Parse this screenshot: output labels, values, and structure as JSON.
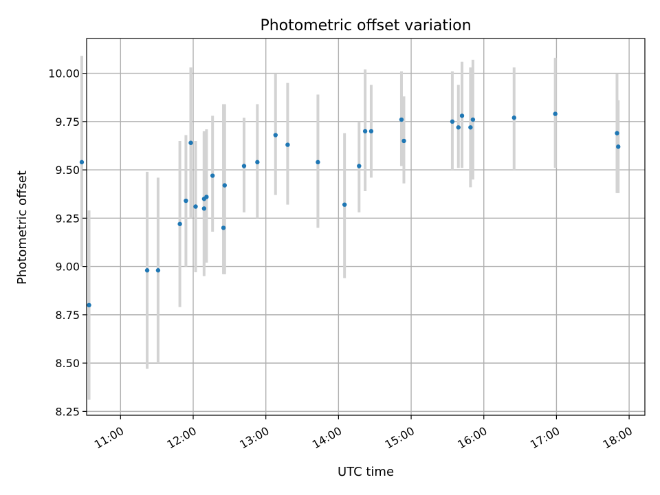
{
  "chart_data": {
    "type": "scatter",
    "title": "Photometric offset variation",
    "xlabel": "UTC time",
    "ylabel": "Photometric offset",
    "x_axis": "time",
    "xlim": [
      "10:32",
      "18:13"
    ],
    "ylim": [
      8.23,
      10.18
    ],
    "xticks": [
      "11:00",
      "12:00",
      "13:00",
      "14:00",
      "15:00",
      "16:00",
      "17:00",
      "18:00"
    ],
    "yticks": [
      "8.25",
      "8.50",
      "8.75",
      "9.00",
      "9.25",
      "9.50",
      "9.75",
      "10.00"
    ],
    "grid": true,
    "marker_color": "#1f77b4",
    "errorbar_color": "#d3d3d3",
    "points": [
      {
        "t": "10:28",
        "y": 9.54,
        "lo": 9.0,
        "hi": 10.09
      },
      {
        "t": "10:34",
        "y": 8.8,
        "lo": 8.31,
        "hi": 9.29
      },
      {
        "t": "11:22",
        "y": 8.98,
        "lo": 8.47,
        "hi": 9.49
      },
      {
        "t": "11:31",
        "y": 8.98,
        "lo": 8.5,
        "hi": 9.46
      },
      {
        "t": "11:49",
        "y": 9.22,
        "lo": 8.79,
        "hi": 9.65
      },
      {
        "t": "11:54",
        "y": 9.34,
        "lo": 9.0,
        "hi": 9.68
      },
      {
        "t": "11:58",
        "y": 9.64,
        "lo": 9.25,
        "hi": 10.03
      },
      {
        "t": "12:02",
        "y": 9.31,
        "lo": 8.97,
        "hi": 9.65
      },
      {
        "t": "12:09",
        "y": 9.3,
        "lo": 8.95,
        "hi": 9.69
      },
      {
        "t": "12:09",
        "y": 9.35,
        "lo": 9.0,
        "hi": 9.7
      },
      {
        "t": "12:11",
        "y": 9.36,
        "lo": 9.02,
        "hi": 9.71
      },
      {
        "t": "12:16",
        "y": 9.47,
        "lo": 9.18,
        "hi": 9.78
      },
      {
        "t": "12:25",
        "y": 9.2,
        "lo": 8.96,
        "hi": 9.84
      },
      {
        "t": "12:26",
        "y": 9.42,
        "lo": 8.96,
        "hi": 9.84
      },
      {
        "t": "12:42",
        "y": 9.52,
        "lo": 9.28,
        "hi": 9.77
      },
      {
        "t": "12:53",
        "y": 9.54,
        "lo": 9.25,
        "hi": 9.84
      },
      {
        "t": "13:08",
        "y": 9.68,
        "lo": 9.37,
        "hi": 10.0
      },
      {
        "t": "13:18",
        "y": 9.63,
        "lo": 9.32,
        "hi": 9.95
      },
      {
        "t": "13:43",
        "y": 9.54,
        "lo": 9.2,
        "hi": 9.89
      },
      {
        "t": "14:05",
        "y": 9.32,
        "lo": 8.94,
        "hi": 9.69
      },
      {
        "t": "14:17",
        "y": 9.52,
        "lo": 9.28,
        "hi": 9.75
      },
      {
        "t": "14:22",
        "y": 9.7,
        "lo": 9.39,
        "hi": 10.02
      },
      {
        "t": "14:27",
        "y": 9.7,
        "lo": 9.46,
        "hi": 9.94
      },
      {
        "t": "14:52",
        "y": 9.76,
        "lo": 9.52,
        "hi": 10.01
      },
      {
        "t": "14:54",
        "y": 9.65,
        "lo": 9.43,
        "hi": 9.88
      },
      {
        "t": "15:34",
        "y": 9.75,
        "lo": 9.5,
        "hi": 10.01
      },
      {
        "t": "15:39",
        "y": 9.72,
        "lo": 9.51,
        "hi": 9.94
      },
      {
        "t": "15:42",
        "y": 9.78,
        "lo": 9.51,
        "hi": 10.06
      },
      {
        "t": "15:49",
        "y": 9.72,
        "lo": 9.41,
        "hi": 10.03
      },
      {
        "t": "15:51",
        "y": 9.76,
        "lo": 9.45,
        "hi": 10.07
      },
      {
        "t": "16:25",
        "y": 9.77,
        "lo": 9.5,
        "hi": 10.03
      },
      {
        "t": "16:59",
        "y": 9.79,
        "lo": 9.51,
        "hi": 10.08
      },
      {
        "t": "17:50",
        "y": 9.69,
        "lo": 9.38,
        "hi": 10.0
      },
      {
        "t": "17:51",
        "y": 9.62,
        "lo": 9.38,
        "hi": 9.86
      }
    ]
  }
}
